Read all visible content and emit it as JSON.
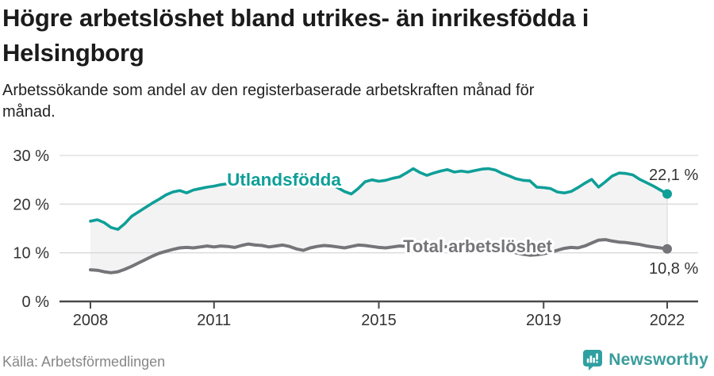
{
  "header": {
    "title": "Högre arbetslöshet bland utrikes- än inrikesfödda i Helsingborg",
    "subtitle": "Arbetssökande som andel av den registerbaserade arbetskraften månad för månad."
  },
  "chart_data": {
    "type": "line",
    "title": "Högre arbetslöshet bland utrikes- än inrikesfödda i Helsingborg",
    "subtitle": "Arbetssökande som andel av den registerbaserade arbetskraften månad för månad.",
    "x_unit": "month",
    "x_start": "2008-01",
    "x_end": "2022-01",
    "x_point_interval_months": 2,
    "x_ticks": [
      2008,
      2011,
      2015,
      2019,
      2022
    ],
    "y_ticks": [
      0,
      10,
      20,
      30
    ],
    "y_tick_suffix": " %",
    "ylim": [
      0,
      32
    ],
    "grid": true,
    "legend_position": "inline-labels",
    "fill_between_color": "#f3f3f3",
    "series": [
      {
        "name": "Utlandsfödda",
        "color": "#0e9f98",
        "end_value": 22.1,
        "end_label": "22,1 %",
        "values": [
          16.5,
          16.8,
          16.2,
          15.2,
          14.8,
          16.0,
          17.5,
          18.4,
          19.3,
          20.2,
          21.0,
          21.9,
          22.5,
          22.8,
          22.3,
          22.9,
          23.2,
          23.5,
          23.7,
          24.0,
          24.2,
          24.1,
          24.4,
          24.7,
          24.9,
          24.6,
          24.1,
          24.4,
          24.7,
          24.5,
          24.3,
          24.6,
          24.2,
          24.5,
          24.3,
          24.0,
          23.4,
          22.6,
          22.1,
          23.2,
          24.6,
          25.0,
          24.7,
          24.9,
          25.3,
          25.6,
          26.4,
          27.3,
          26.5,
          25.9,
          26.4,
          26.8,
          27.1,
          26.6,
          26.8,
          26.6,
          26.9,
          27.2,
          27.3,
          27.0,
          26.3,
          25.8,
          25.2,
          24.9,
          24.8,
          23.5,
          23.4,
          23.2,
          22.5,
          22.3,
          22.6,
          23.4,
          24.3,
          25.1,
          23.5,
          24.6,
          25.8,
          26.4,
          26.3,
          26.0,
          25.1,
          24.4,
          23.7,
          22.9,
          22.1
        ]
      },
      {
        "name": "Total arbetslöshet",
        "color": "#757579",
        "end_value": 10.8,
        "end_label": "10,8 %",
        "values": [
          6.5,
          6.4,
          6.1,
          5.9,
          6.1,
          6.6,
          7.2,
          7.9,
          8.6,
          9.3,
          9.9,
          10.3,
          10.7,
          11.0,
          11.1,
          11.0,
          11.2,
          11.4,
          11.2,
          11.4,
          11.3,
          11.1,
          11.5,
          11.8,
          11.6,
          11.5,
          11.2,
          11.4,
          11.6,
          11.3,
          10.8,
          10.5,
          11.0,
          11.3,
          11.5,
          11.4,
          11.2,
          11.0,
          11.3,
          11.6,
          11.5,
          11.3,
          11.1,
          11.0,
          11.2,
          11.4,
          11.3,
          11.5,
          11.4,
          11.2,
          11.0,
          11.1,
          11.3,
          11.2,
          10.9,
          10.7,
          10.5,
          10.7,
          10.9,
          11.0,
          10.8,
          10.4,
          10.0,
          9.7,
          9.5,
          9.6,
          9.8,
          10.1,
          10.5,
          10.9,
          11.1,
          11.0,
          11.4,
          12.0,
          12.6,
          12.7,
          12.4,
          12.2,
          12.1,
          11.9,
          11.7,
          11.4,
          11.2,
          11.0,
          10.8
        ]
      }
    ]
  },
  "footer": {
    "source": "Källa: Arbetsförmedlingen",
    "brand": "Newsworthy"
  },
  "colors": {
    "accent_teal": "#0e9f98",
    "line_gray": "#757579",
    "brand_teal": "#2fa0a1",
    "text_dark": "#1b1b1b",
    "axis_text": "#333333",
    "grid_line": "#d9d9d9",
    "axis_line": "#4a4a4a"
  }
}
